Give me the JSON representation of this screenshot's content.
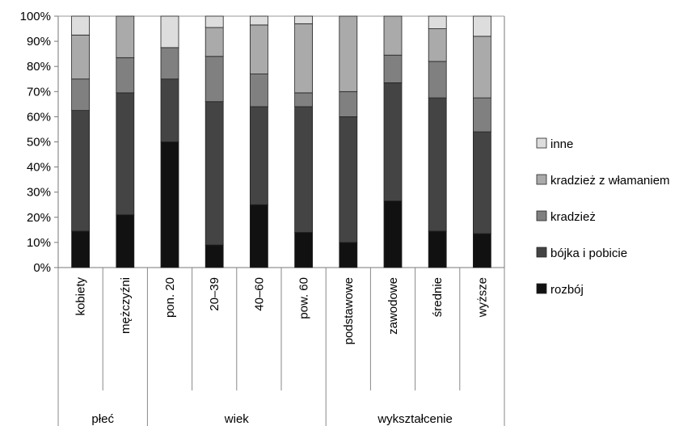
{
  "chart_data": {
    "type": "bar",
    "stacked": true,
    "normalized": true,
    "ylim": [
      0,
      100
    ],
    "yticks": [
      "0%",
      "10%",
      "20%",
      "30%",
      "40%",
      "50%",
      "60%",
      "70%",
      "80%",
      "90%",
      "100%"
    ],
    "grid": false,
    "legend_position": "right",
    "categories": [
      "kobiety",
      "mężczyźni",
      "pon. 20",
      "20–39",
      "40–60",
      "pow. 60",
      "podstawowe",
      "zawodowe",
      "średnie",
      "wyższe"
    ],
    "groups": [
      {
        "label": "płeć",
        "count": 2
      },
      {
        "label": "wiek",
        "count": 4
      },
      {
        "label": "wykształcenie",
        "count": 4
      }
    ],
    "series": [
      {
        "name": "rozbój",
        "color": "#111111",
        "values": [
          14.5,
          21,
          50,
          9,
          25,
          14,
          10,
          26.5,
          14.5,
          13.5
        ]
      },
      {
        "name": "bójka i pobicie",
        "color": "#444444",
        "values": [
          48,
          48.5,
          25,
          57,
          39,
          50,
          50,
          47,
          53,
          40.5
        ]
      },
      {
        "name": "kradzież",
        "color": "#808080",
        "values": [
          12.5,
          14,
          12.5,
          18,
          13,
          5.5,
          10,
          11,
          14.5,
          13.5
        ]
      },
      {
        "name": "kradzież z włamaniem",
        "color": "#aaaaaa",
        "values": [
          17.5,
          16.5,
          0,
          11.5,
          19.5,
          27.5,
          30,
          15.5,
          13,
          24.5
        ]
      },
      {
        "name": "inne",
        "color": "#dddddd",
        "values": [
          7.5,
          0,
          12.5,
          4.5,
          3.5,
          3,
          0,
          0,
          5,
          8
        ]
      }
    ]
  }
}
